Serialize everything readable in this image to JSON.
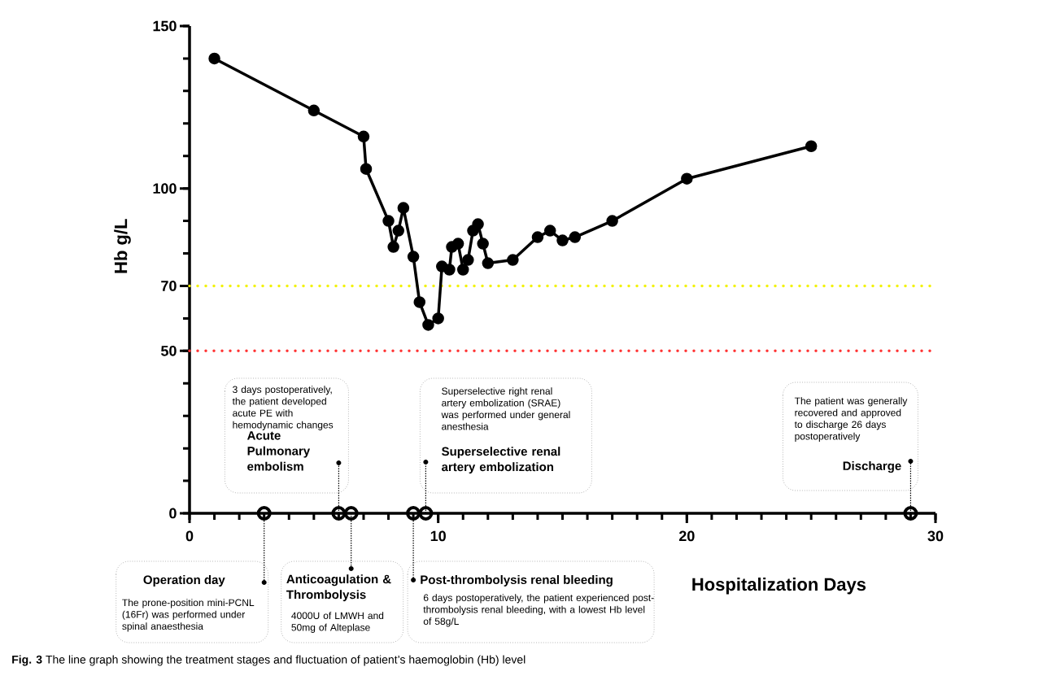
{
  "chart_data": {
    "type": "line",
    "xlabel": "Hospitalization Days",
    "ylabel": "Hb g/L",
    "xlim": [
      0,
      30
    ],
    "xticks": [
      0,
      10,
      20,
      30
    ],
    "ylim": [
      0,
      150
    ],
    "yticks": [
      0,
      50,
      70,
      100,
      150
    ],
    "grid": false,
    "series": [
      {
        "type": "line",
        "color": "#000000",
        "marker": "circle",
        "line_style": "solid",
        "x": [
          1,
          5,
          7,
          7.1,
          8,
          8.2,
          8.4,
          8.6,
          9,
          9.25,
          9.6,
          10,
          10.15,
          10.45,
          10.55,
          10.8,
          11,
          11.2,
          11.4,
          11.6,
          11.8,
          12,
          13,
          14,
          14.5,
          15,
          15.5,
          17,
          20,
          25
        ],
        "values": [
          140,
          124,
          116,
          106,
          90,
          82,
          87,
          94,
          79,
          65,
          58,
          60,
          76,
          75,
          82,
          83,
          75,
          78,
          87,
          89,
          83,
          77,
          78,
          85,
          87,
          84,
          85,
          90,
          103,
          113
        ]
      },
      {
        "type": "scatter",
        "color": "#000000",
        "marker": "circle",
        "x": [
          3,
          6,
          6.5,
          9,
          9.5,
          29
        ],
        "values": [
          0,
          0,
          0,
          0,
          0,
          0
        ]
      }
    ],
    "ref_lines": [
      {
        "axis": "y",
        "value": 70,
        "color": "#f2f200",
        "line_style": "dotted"
      },
      {
        "axis": "y",
        "value": 50,
        "color": "#ff3333",
        "line_style": "dotted"
      }
    ],
    "annotations": [
      "**Fig. 3** The line graph showing the treatment stages and fluctuation of patient’s haemoglobin (Hb) level",
      "Operation day",
      "The prone-position mini-PCNL (16Fr) was performed under spinal anaesthesia",
      "Acute Pulmonary embolism",
      "3 days postoperatively, the patient developed acute PE with hemodynamic changes",
      "Anticoagulation & Thrombolysis",
      "4000U of LMWH and 50mg of Alteplase",
      "Post-thrombolysis renal bleeding",
      "6 days postoperatively, the patient experienced post-thrombolysis renal bleeding, with a lowest Hb level of 58g/L",
      "Superselective renal artery embolization",
      "Superselective right renal artery embolization (SRAE) was performed under general anesthesia",
      "Discharge",
      "The patient was generally recovered and approved to discharge 26 days postoperatively"
    ]
  }
}
